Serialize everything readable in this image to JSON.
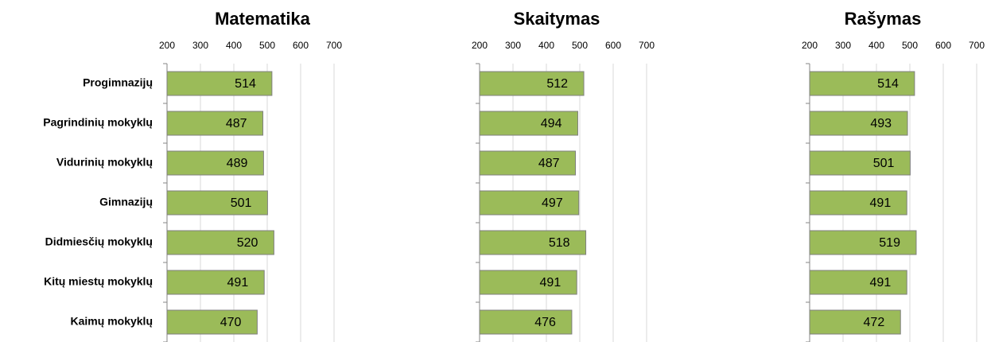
{
  "chart_data": [
    {
      "type": "bar",
      "orientation": "horizontal",
      "title": "Matematika",
      "categories": [
        "Progimnazijų",
        "Pagrindinių mokyklų",
        "Vidurinių mokyklų",
        "Gimnazijų",
        "Didmiesčių mokyklų",
        "Kitų miestų mokyklų",
        "Kaimų mokyklų"
      ],
      "values": [
        514,
        487,
        489,
        501,
        520,
        491,
        470
      ],
      "color": "#9bbb59",
      "xlim": [
        200,
        700
      ],
      "xticks": [
        200,
        300,
        400,
        500,
        600,
        700
      ],
      "grid": true
    },
    {
      "type": "bar",
      "orientation": "horizontal",
      "title": "Skaitymas",
      "values": [
        512,
        494,
        487,
        497,
        518,
        491,
        476
      ],
      "color": "#9bbb59",
      "xlim": [
        200,
        700
      ],
      "xticks": [
        200,
        300,
        400,
        500,
        600,
        700
      ],
      "grid": true
    },
    {
      "type": "bar",
      "orientation": "horizontal",
      "title": "Rašymas",
      "values": [
        514,
        493,
        501,
        491,
        519,
        491,
        472
      ],
      "color": "#9bbb59",
      "xlim": [
        200,
        700
      ],
      "xticks": [
        200,
        300,
        400,
        500,
        600,
        700
      ],
      "grid": true
    }
  ]
}
